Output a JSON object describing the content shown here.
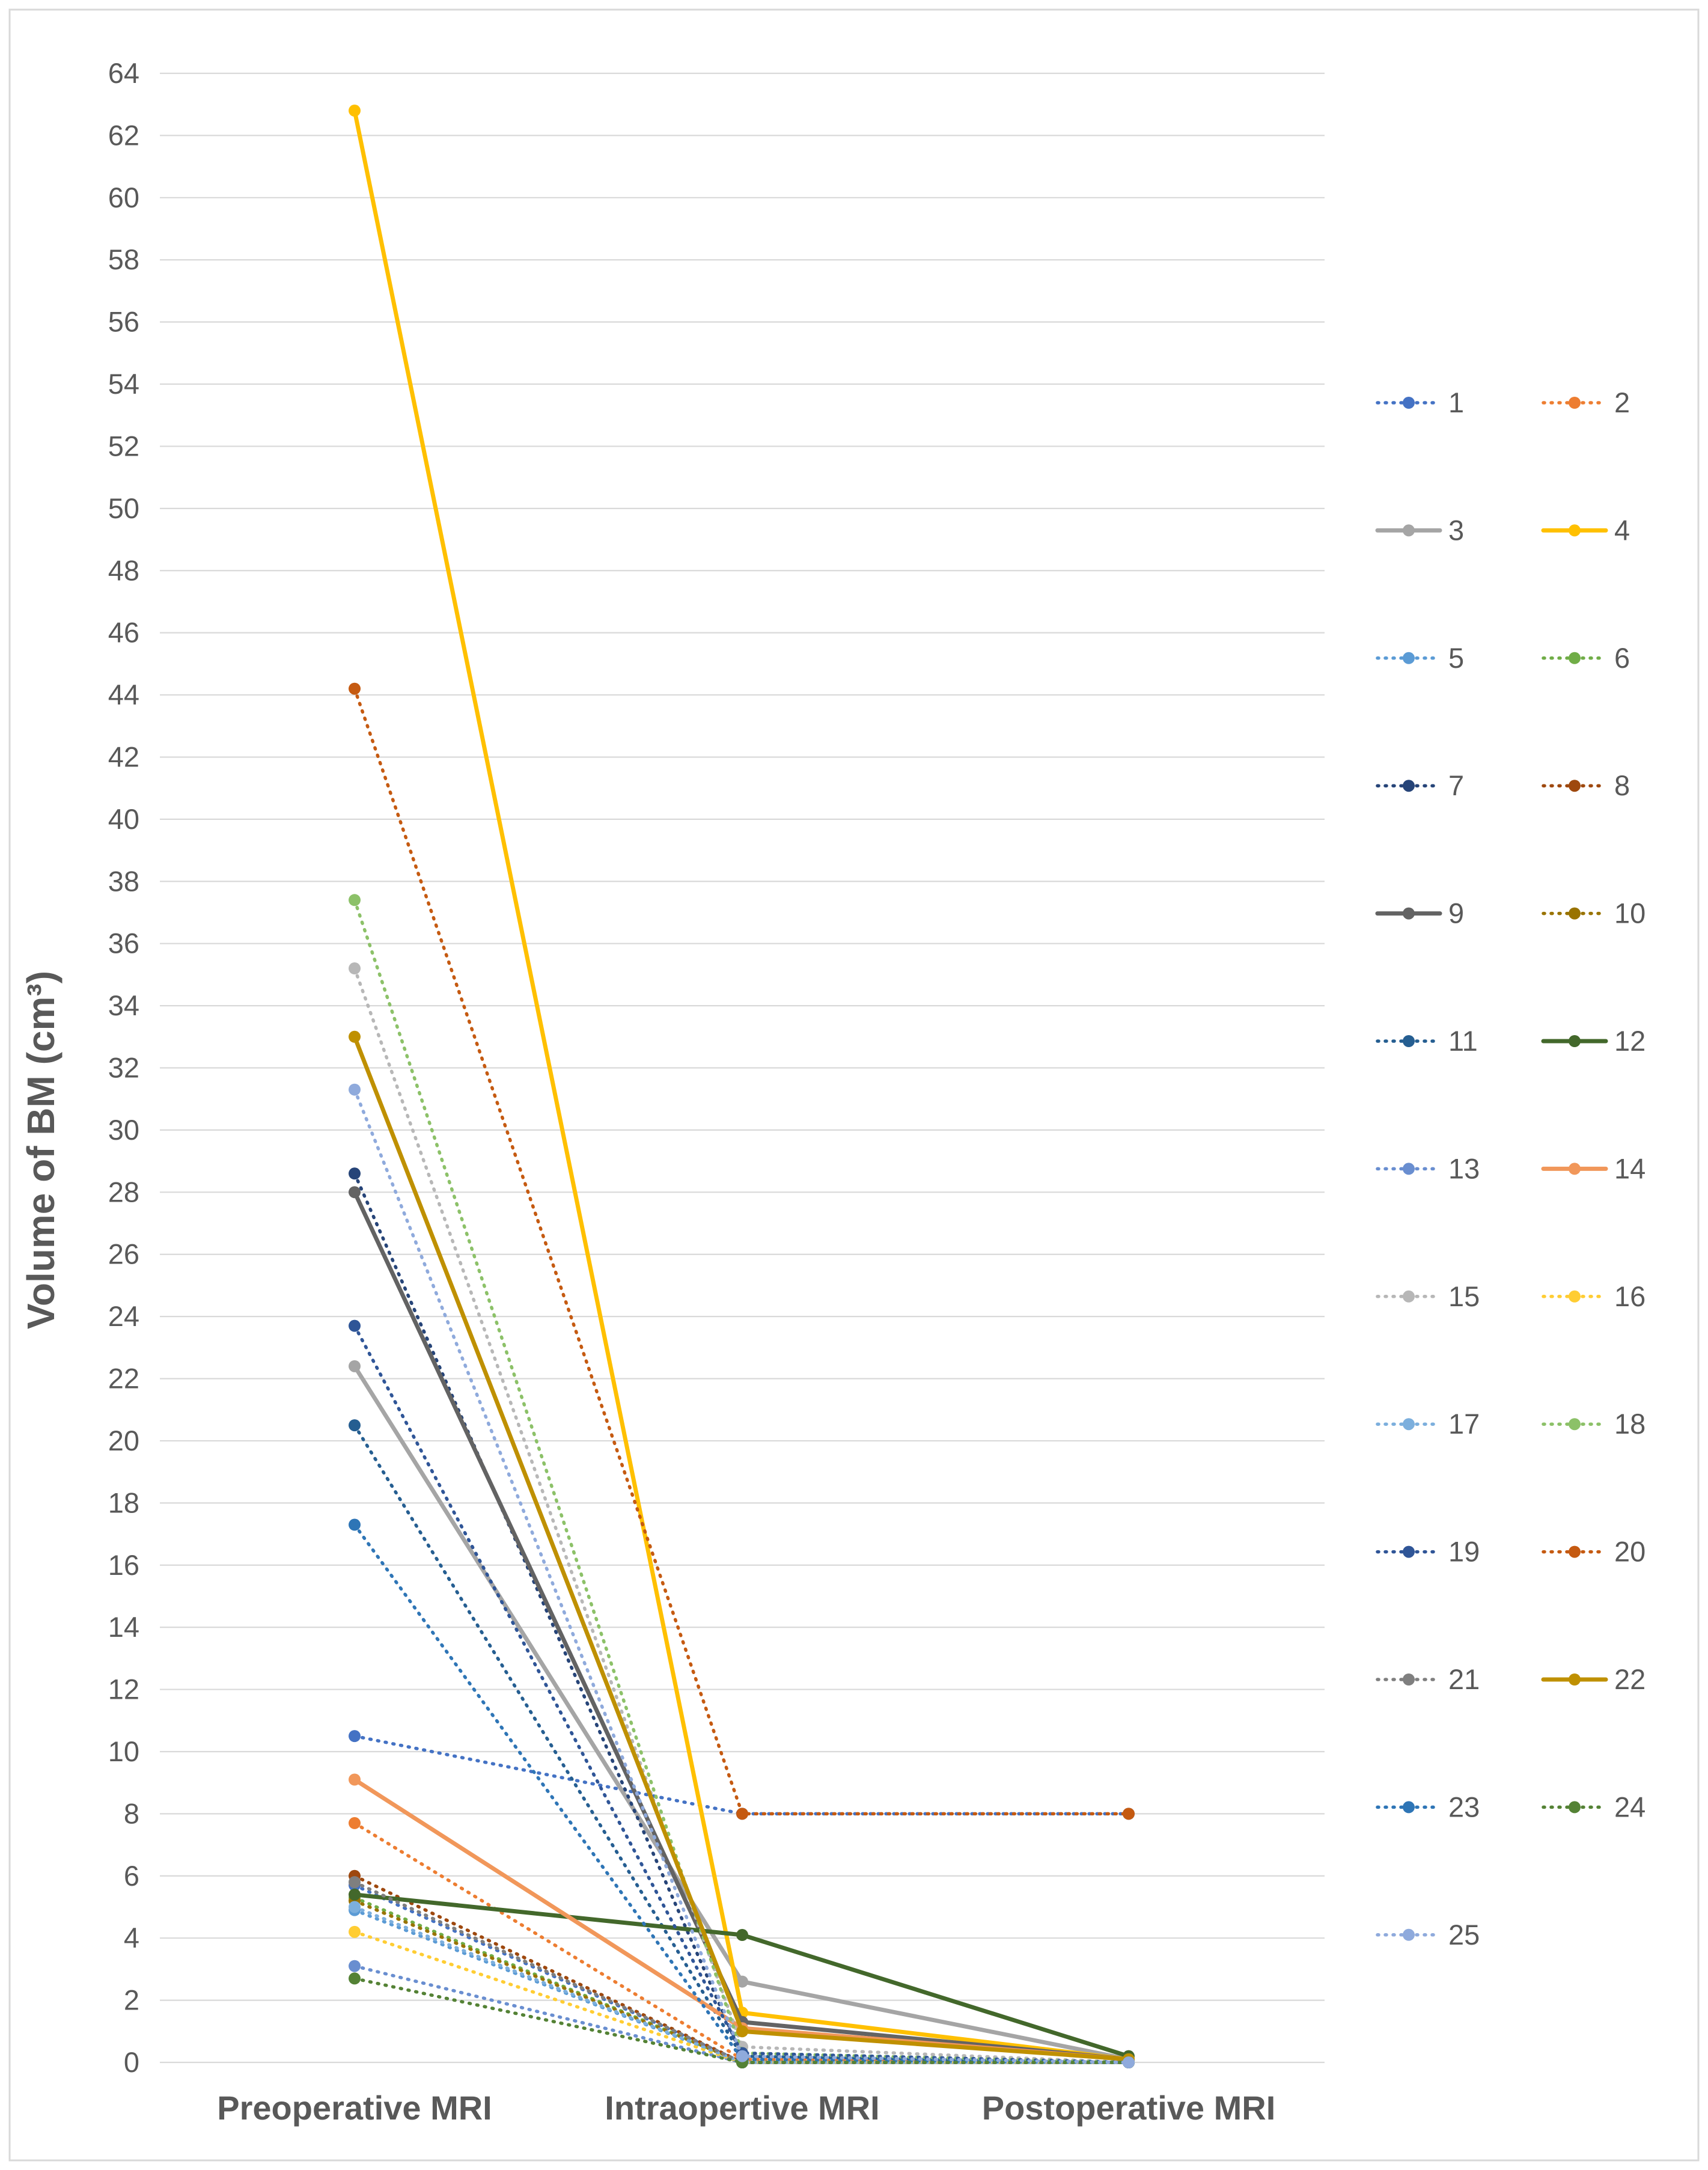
{
  "chart_data": {
    "type": "line",
    "title": "",
    "xlabel": "",
    "ylabel": "Volume of BM (cm³)",
    "categories": [
      "Preoperative MRI",
      "Intraopertive MRI",
      "Postoperative MRI"
    ],
    "ylim": [
      0,
      64
    ],
    "yticks": [
      0,
      2,
      4,
      6,
      8,
      10,
      12,
      14,
      16,
      18,
      20,
      22,
      24,
      26,
      28,
      30,
      32,
      34,
      36,
      38,
      40,
      42,
      44,
      46,
      48,
      50,
      52,
      54,
      56,
      58,
      60,
      62,
      64
    ],
    "grid": true,
    "legend_position": "right",
    "series": [
      {
        "name": "1",
        "values": [
          5.7,
          0.0,
          0.0
        ],
        "color": "#4472c4",
        "style": "dotted"
      },
      {
        "name": "2",
        "values": [
          7.7,
          0.1,
          0.0
        ],
        "color": "#ed7d31",
        "style": "dotted"
      },
      {
        "name": "3",
        "values": [
          22.4,
          2.6,
          0.1
        ],
        "color": "#a5a5a5",
        "style": "solid"
      },
      {
        "name": "4",
        "values": [
          62.8,
          1.6,
          0.1
        ],
        "color": "#ffc000",
        "style": "solid"
      },
      {
        "name": "5",
        "values": [
          4.9,
          0.0,
          0.0
        ],
        "color": "#5b9bd5",
        "style": "dotted"
      },
      {
        "name": "6",
        "values": [
          5.3,
          0.0,
          0.0
        ],
        "color": "#70ad47",
        "style": "dotted"
      },
      {
        "name": "7",
        "values": [
          28.6,
          0.2,
          0.0
        ],
        "color": "#264478",
        "style": "dotted"
      },
      {
        "name": "8",
        "values": [
          6.0,
          0.0,
          0.0
        ],
        "color": "#9e480e",
        "style": "dotted"
      },
      {
        "name": "9",
        "values": [
          28.0,
          1.3,
          0.1
        ],
        "color": "#636363",
        "style": "solid"
      },
      {
        "name": "10",
        "values": [
          5.2,
          0.0,
          0.0
        ],
        "color": "#997300",
        "style": "dotted"
      },
      {
        "name": "11",
        "values": [
          20.5,
          0.2,
          0.0
        ],
        "color": "#255e91",
        "style": "dotted"
      },
      {
        "name": "12",
        "values": [
          5.4,
          4.1,
          0.2
        ],
        "color": "#43682b",
        "style": "solid"
      },
      {
        "name": "13",
        "values": [
          3.1,
          0.0,
          0.0
        ],
        "color": "#698ed0",
        "style": "dotted"
      },
      {
        "name": "14",
        "values": [
          9.1,
          1.1,
          0.1
        ],
        "color": "#f1975a",
        "style": "solid"
      },
      {
        "name": "15",
        "values": [
          35.2,
          0.5,
          0.0
        ],
        "color": "#b7b7b7",
        "style": "dotted"
      },
      {
        "name": "16",
        "values": [
          4.2,
          0.0,
          0.0
        ],
        "color": "#ffcd33",
        "style": "dotted"
      },
      {
        "name": "17",
        "values": [
          5.0,
          0.0,
          0.0
        ],
        "color": "#7cafdd",
        "style": "dotted"
      },
      {
        "name": "18",
        "values": [
          37.4,
          0.3,
          0.0
        ],
        "color": "#8cc168",
        "style": "dotted"
      },
      {
        "name": "19",
        "values": [
          23.7,
          0.3,
          0.0
        ],
        "color": "#2f5597",
        "style": "dotted"
      },
      {
        "name": "20",
        "values": [
          44.2,
          8.0,
          8.0
        ],
        "color": "#c55a11",
        "style": "dotted"
      },
      {
        "name": "21",
        "values": [
          5.8,
          0.0,
          0.0
        ],
        "color": "#7f7f7f",
        "style": "dotted"
      },
      {
        "name": "22",
        "values": [
          33.0,
          1.0,
          0.1
        ],
        "color": "#bf9000",
        "style": "solid"
      },
      {
        "name": "23",
        "values": [
          17.3,
          0.1,
          0.0
        ],
        "color": "#2e75b6",
        "style": "dotted"
      },
      {
        "name": "24",
        "values": [
          2.7,
          0.0,
          0.0
        ],
        "color": "#548235",
        "style": "dotted"
      },
      {
        "name": "25",
        "values": [
          31.3,
          0.2,
          0.0
        ],
        "color": "#8faadc",
        "style": "dotted"
      }
    ],
    "extra_series": [
      {
        "values": [
          10.5,
          8.0,
          8.0
        ],
        "color": "#4472c4",
        "style": "dotted"
      }
    ]
  }
}
